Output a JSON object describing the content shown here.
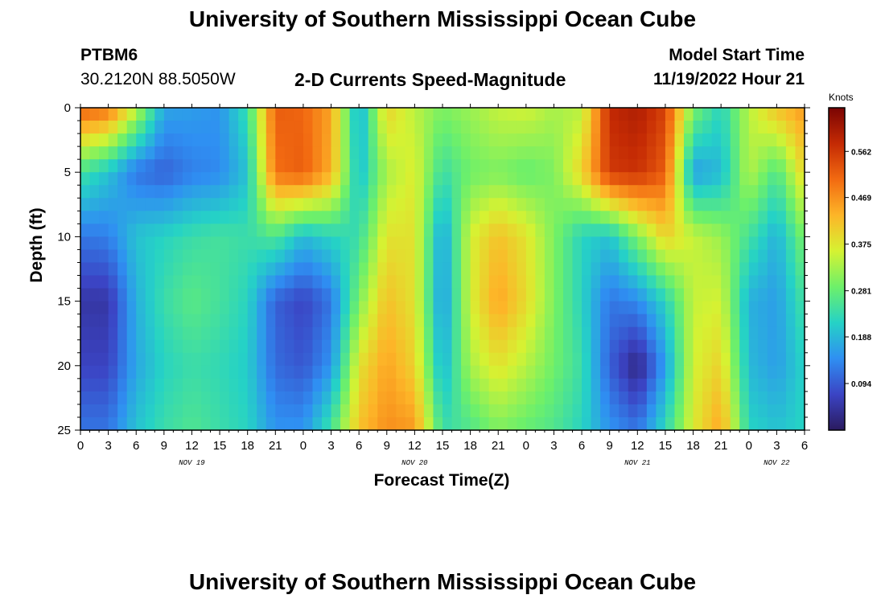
{
  "header": {
    "title": "University of Southern Mississippi Ocean Cube",
    "station_id": "PTBM6",
    "station_coords": "30.2120N  88.5050W",
    "model_start_label": "Model Start Time",
    "model_start_value": "11/19/2022 Hour 21"
  },
  "footer": {
    "title": "University of Southern Mississippi Ocean Cube"
  },
  "colors": {
    "colormap": [
      "#2a1a5e",
      "#3b44c4",
      "#2f8ff2",
      "#25d2c6",
      "#6df06a",
      "#d6f232",
      "#fdb528",
      "#f26a11",
      "#c42a04",
      "#7a0403"
    ]
  },
  "chart_data": {
    "type": "heatmap",
    "title": "2-D Currents Speed-Magnitude",
    "xlabel": "Forecast Time(Z)",
    "ylabel": "Depth (ft)",
    "colorbar_label": "Knots",
    "xlim": [
      0,
      78
    ],
    "ylim": [
      0,
      25
    ],
    "y_inverted": true,
    "clim": [
      0,
      0.65
    ],
    "x_ticks": [
      0,
      3,
      6,
      9,
      12,
      15,
      18,
      21,
      24,
      27,
      30,
      33,
      36,
      39,
      42,
      45,
      48,
      51,
      54,
      57,
      60,
      63,
      66,
      69,
      72,
      75,
      78
    ],
    "x_tick_labels": [
      "0",
      "3",
      "6",
      "9",
      "12",
      "15",
      "18",
      "21",
      "0",
      "3",
      "6",
      "9",
      "12",
      "15",
      "18",
      "21",
      "0",
      "3",
      "6",
      "9",
      "12",
      "15",
      "18",
      "21",
      "0",
      "3",
      "6"
    ],
    "y_ticks": [
      0,
      5,
      10,
      15,
      20,
      25
    ],
    "y_tick_labels": [
      "0",
      "5",
      "10",
      "15",
      "20",
      "25"
    ],
    "day_labels": [
      {
        "text": "NOV 19",
        "x": 12
      },
      {
        "text": "NOV 20",
        "x": 36
      },
      {
        "text": "NOV 21",
        "x": 60
      },
      {
        "text": "NOV 22",
        "x": 75
      }
    ],
    "colorbar_ticks": [
      0.094,
      0.188,
      0.281,
      0.375,
      0.469,
      0.562
    ],
    "colorbar_tick_labels": [
      "0.094",
      "0.188",
      "0.281",
      "0.375",
      "0.469",
      "0.562"
    ],
    "x": [
      0,
      3,
      6,
      9,
      12,
      15,
      18,
      21,
      24,
      27,
      30,
      33,
      36,
      39,
      42,
      45,
      48,
      51,
      54,
      57,
      60,
      63,
      66,
      69,
      72,
      75,
      78
    ],
    "depths": [
      0,
      5,
      10,
      15,
      20,
      25
    ],
    "values": [
      [
        0.52,
        0.5,
        0.35,
        0.17,
        0.16,
        0.15,
        0.24,
        0.52,
        0.51,
        0.45,
        0.17,
        0.4,
        0.34,
        0.3,
        0.32,
        0.35,
        0.36,
        0.33,
        0.34,
        0.58,
        0.6,
        0.55,
        0.3,
        0.22,
        0.34,
        0.42,
        0.46
      ],
      [
        0.25,
        0.2,
        0.12,
        0.1,
        0.13,
        0.14,
        0.2,
        0.5,
        0.52,
        0.44,
        0.19,
        0.33,
        0.37,
        0.24,
        0.29,
        0.3,
        0.28,
        0.3,
        0.4,
        0.56,
        0.57,
        0.52,
        0.16,
        0.19,
        0.34,
        0.26,
        0.4
      ],
      [
        0.12,
        0.13,
        0.2,
        0.22,
        0.24,
        0.25,
        0.24,
        0.26,
        0.19,
        0.22,
        0.24,
        0.38,
        0.38,
        0.16,
        0.36,
        0.42,
        0.38,
        0.3,
        0.22,
        0.2,
        0.3,
        0.4,
        0.35,
        0.32,
        0.25,
        0.18,
        0.3
      ],
      [
        0.05,
        0.05,
        0.18,
        0.24,
        0.27,
        0.25,
        0.22,
        0.1,
        0.07,
        0.12,
        0.3,
        0.42,
        0.38,
        0.15,
        0.36,
        0.45,
        0.39,
        0.3,
        0.22,
        0.12,
        0.14,
        0.22,
        0.35,
        0.36,
        0.18,
        0.16,
        0.25
      ],
      [
        0.07,
        0.07,
        0.17,
        0.22,
        0.24,
        0.23,
        0.21,
        0.11,
        0.09,
        0.15,
        0.38,
        0.45,
        0.4,
        0.18,
        0.33,
        0.38,
        0.34,
        0.29,
        0.24,
        0.1,
        0.02,
        0.16,
        0.36,
        0.4,
        0.19,
        0.16,
        0.22
      ],
      [
        0.12,
        0.12,
        0.2,
        0.24,
        0.26,
        0.24,
        0.22,
        0.15,
        0.15,
        0.25,
        0.42,
        0.47,
        0.46,
        0.24,
        0.26,
        0.3,
        0.28,
        0.26,
        0.22,
        0.15,
        0.12,
        0.23,
        0.37,
        0.45,
        0.22,
        0.2,
        0.22
      ]
    ]
  }
}
